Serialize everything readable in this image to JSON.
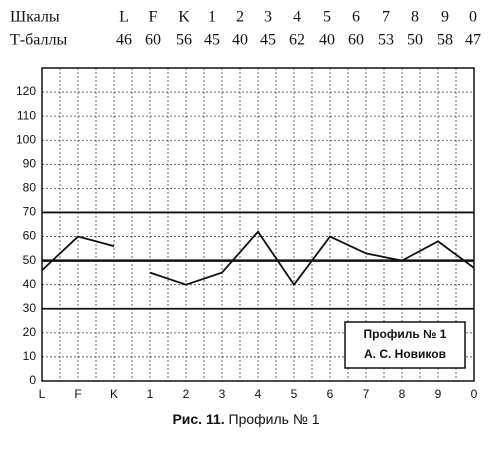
{
  "chart_data": {
    "type": "line",
    "row_labels": [
      "Шкалы",
      "Т-баллы"
    ],
    "categories": [
      "L",
      "F",
      "K",
      "1",
      "2",
      "3",
      "4",
      "5",
      "6",
      "7",
      "8",
      "9",
      "0"
    ],
    "series": [
      {
        "name": "Профиль № 1",
        "color": "#111111",
        "values": [
          46,
          60,
          56,
          45,
          40,
          45,
          62,
          40,
          60,
          53,
          50,
          58,
          47
        ]
      }
    ],
    "ylim": [
      0,
      130
    ],
    "yticks": [
      0,
      10,
      20,
      30,
      40,
      50,
      60,
      70,
      80,
      90,
      100,
      110,
      120
    ],
    "reference_lines": [
      30,
      50,
      70
    ],
    "grid": true,
    "legend": {
      "title": "Профиль № 1",
      "author": "А. С. Новиков"
    },
    "caption": {
      "label": "Рис. 11.",
      "text": "Профиль № 1"
    }
  }
}
